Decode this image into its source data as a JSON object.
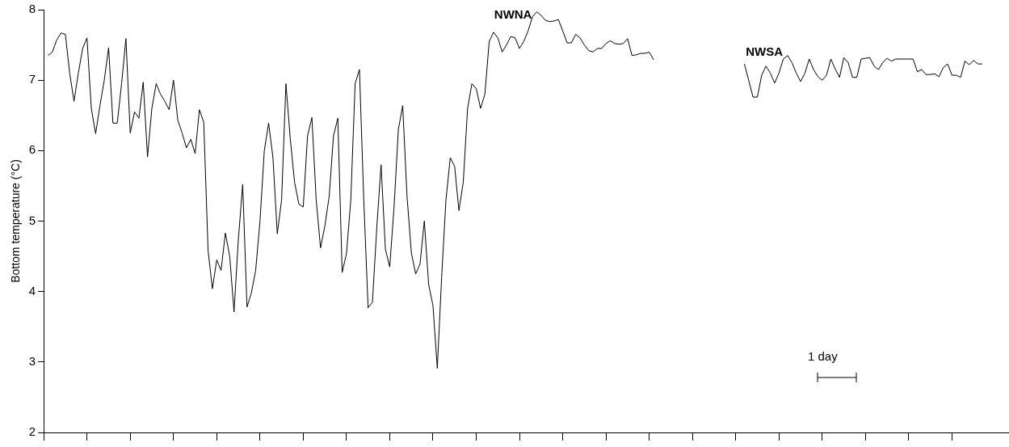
{
  "chart_data": {
    "type": "line",
    "ylabel": "Bottom temperature (°C)",
    "ylim": [
      2,
      8
    ],
    "yticks": [
      2,
      3,
      4,
      5,
      6,
      7,
      8
    ],
    "tick_labels": "y",
    "annotations": [
      "1 day"
    ],
    "categories": [
      null,
      null,
      null,
      null,
      null,
      null,
      null,
      null,
      null,
      null,
      null,
      null,
      null,
      null,
      null,
      null,
      null,
      null,
      null,
      null,
      null,
      null,
      null,
      null,
      null,
      null,
      null,
      null,
      null,
      null,
      null,
      null,
      null,
      null,
      null,
      null,
      null,
      null,
      null,
      null,
      null,
      null,
      null,
      null,
      null,
      null,
      null,
      null,
      null,
      null,
      null,
      null,
      null,
      null,
      null,
      null,
      null,
      null,
      null,
      null,
      null,
      null,
      null,
      null,
      null,
      null,
      null,
      null,
      null,
      null,
      null,
      null,
      null,
      null,
      null,
      null,
      null,
      null,
      null,
      null,
      null,
      null,
      null,
      null,
      null,
      null,
      null,
      null,
      null,
      null,
      null,
      null,
      null,
      null,
      null,
      null,
      null,
      null,
      null,
      null,
      null,
      null,
      null,
      null,
      null,
      null,
      null,
      null,
      null,
      null,
      null,
      null,
      null,
      null,
      null,
      null,
      null,
      null,
      null,
      null,
      null,
      null,
      null,
      null,
      null,
      null,
      null,
      null,
      null,
      null,
      null,
      null,
      null,
      null,
      null,
      null,
      null,
      null,
      null,
      null,
      null,
      null,
      null,
      null,
      null,
      null,
      null,
      null,
      null,
      null,
      null,
      null,
      null,
      null,
      null,
      null,
      null,
      null,
      null,
      null,
      null,
      null,
      null,
      null,
      null,
      null,
      null,
      null,
      null,
      null,
      null,
      null,
      null,
      null,
      null,
      null,
      null,
      null,
      null,
      null,
      null,
      null,
      null,
      null,
      null,
      null,
      null,
      null,
      null,
      null,
      null,
      null,
      null,
      null,
      null,
      null,
      null,
      null,
      null,
      null,
      null,
      null,
      null,
      null,
      null,
      null,
      null,
      null,
      null,
      null,
      null,
      null,
      null,
      null,
      null,
      null,
      null,
      null,
      null,
      null,
      null,
      null,
      null,
      null
    ],
    "series": [
      {
        "name": "NWNA",
        "color": "#000000",
        "values": [
          null,
          7.35,
          7.4,
          7.57,
          7.67,
          7.65,
          7.1,
          6.7,
          7.1,
          7.45,
          7.6,
          6.6,
          6.24,
          6.64,
          7.0,
          7.46,
          6.39,
          6.39,
          6.95,
          7.59,
          6.25,
          6.55,
          6.46,
          6.97,
          5.91,
          6.6,
          6.95,
          6.8,
          6.7,
          6.58,
          7.0,
          6.43,
          6.25,
          6.04,
          6.16,
          5.96,
          6.58,
          6.4,
          4.58,
          4.04,
          4.45,
          4.3,
          4.83,
          4.5,
          3.71,
          4.74,
          5.52,
          3.78,
          3.98,
          4.3,
          5.0,
          6.0,
          6.39,
          5.9,
          4.82,
          5.3,
          6.95,
          6.17,
          5.55,
          5.24,
          5.2,
          6.21,
          6.47,
          5.3,
          4.62,
          4.93,
          5.35,
          6.21,
          6.46,
          4.27,
          4.54,
          5.3,
          6.95,
          7.15,
          5.3,
          3.77,
          3.85,
          4.9,
          5.8,
          4.6,
          4.35,
          5.2,
          6.3,
          6.64,
          5.35,
          4.55,
          4.25,
          4.39,
          5.0,
          4.1,
          3.8,
          2.91,
          4.2,
          5.3,
          5.9,
          5.78,
          5.15,
          5.55,
          6.6,
          6.95,
          6.88,
          6.6,
          6.8,
          7.55,
          7.68,
          7.6,
          7.4,
          7.5,
          7.62,
          7.6,
          7.45,
          7.55,
          7.7,
          7.9,
          7.97,
          7.92,
          7.85,
          7.83,
          7.84,
          7.86,
          7.7,
          7.53,
          7.53,
          7.65,
          7.6,
          7.5,
          7.42,
          7.4,
          7.45,
          7.45,
          7.52,
          7.56,
          7.52,
          7.51,
          7.52,
          7.59,
          7.35,
          7.36,
          7.38,
          7.38,
          7.4,
          7.29,
          null,
          null,
          null,
          null,
          null,
          null,
          null,
          null,
          null,
          null,
          null,
          null,
          null,
          null,
          null,
          null,
          null,
          null,
          null,
          null,
          null,
          null,
          null,
          null,
          null,
          null,
          null,
          null,
          null,
          null,
          null,
          null,
          null,
          null,
          null,
          null,
          null,
          null,
          null,
          null,
          null,
          null,
          null,
          null,
          null,
          null,
          null,
          null,
          null,
          null,
          null,
          null,
          null,
          null,
          null,
          null,
          null,
          null,
          null,
          null,
          null,
          null,
          null,
          null,
          null,
          null,
          null,
          null,
          null,
          null,
          null,
          null,
          null,
          null,
          null,
          null,
          null,
          null,
          null,
          null,
          null,
          null
        ]
      },
      {
        "name": "NWSA",
        "color": "#000000",
        "values": [
          null,
          null,
          null,
          null,
          null,
          null,
          null,
          null,
          null,
          null,
          null,
          null,
          null,
          null,
          null,
          null,
          null,
          null,
          null,
          null,
          null,
          null,
          null,
          null,
          null,
          null,
          null,
          null,
          null,
          null,
          null,
          null,
          null,
          null,
          null,
          null,
          null,
          null,
          null,
          null,
          null,
          null,
          null,
          null,
          null,
          null,
          null,
          null,
          null,
          null,
          null,
          null,
          null,
          null,
          null,
          null,
          null,
          null,
          null,
          null,
          null,
          null,
          null,
          null,
          null,
          null,
          null,
          null,
          null,
          null,
          null,
          null,
          null,
          null,
          null,
          null,
          null,
          null,
          null,
          null,
          null,
          null,
          null,
          null,
          null,
          null,
          null,
          null,
          null,
          null,
          null,
          null,
          null,
          null,
          null,
          null,
          null,
          null,
          null,
          null,
          null,
          null,
          null,
          null,
          null,
          null,
          null,
          null,
          null,
          null,
          null,
          null,
          null,
          null,
          null,
          null,
          null,
          null,
          null,
          null,
          null,
          null,
          null,
          null,
          null,
          null,
          null,
          null,
          null,
          null,
          null,
          null,
          null,
          null,
          null,
          null,
          null,
          null,
          null,
          null,
          null,
          null,
          null,
          null,
          null,
          null,
          null,
          null,
          null,
          null,
          null,
          null,
          null,
          null,
          null,
          null,
          null,
          null,
          null,
          null,
          null,
          null,
          7.23,
          7.0,
          6.76,
          6.76,
          7.07,
          7.2,
          7.1,
          6.96,
          7.1,
          7.3,
          7.35,
          7.25,
          7.1,
          6.98,
          7.1,
          7.3,
          7.15,
          7.05,
          7.0,
          7.07,
          7.3,
          7.16,
          7.04,
          7.32,
          7.25,
          7.04,
          7.04,
          7.3,
          7.31,
          7.32,
          7.2,
          7.15,
          7.25,
          7.31,
          7.27,
          7.3,
          7.3,
          7.3,
          7.3,
          7.3,
          7.12,
          7.15,
          7.08,
          7.08,
          7.09,
          7.05,
          7.18,
          7.23,
          7.07,
          7.07,
          7.04,
          7.27,
          7.22,
          7.28,
          7.23,
          7.23,
          null,
          null,
          null,
          null,
          null,
          null
        ]
      }
    ]
  }
}
